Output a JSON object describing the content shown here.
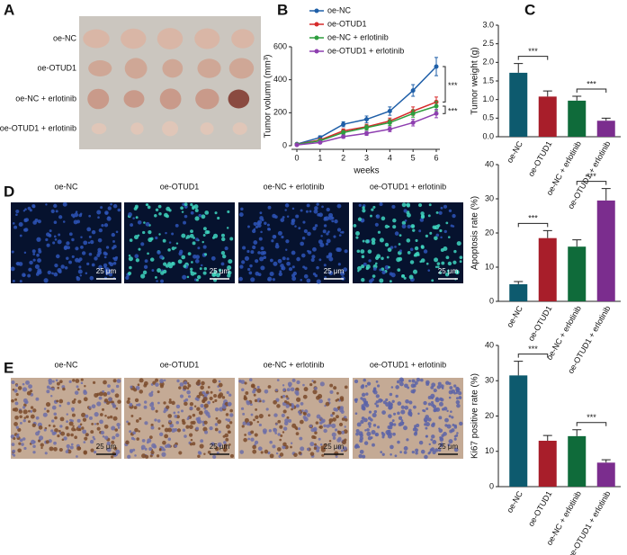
{
  "panel_a": {
    "letter": "A",
    "rows": [
      "oe-NC",
      "oe-OTUD1",
      "oe-NC + erlotinib",
      "oe-OTUD1 + erlotinib"
    ]
  },
  "panel_d": {
    "letter": "D",
    "columns": [
      "oe-NC",
      "oe-OTUD1",
      "oe-NC + erlotinib",
      "oe-OTUD1 + erlotinib"
    ],
    "scale_bar": "25 μm"
  },
  "panel_e": {
    "letter": "E",
    "columns": [
      "oe-NC",
      "oe-OTUD1",
      "oe-NC + erlotinib",
      "oe-OTUD1 + erlotinib"
    ],
    "scale_bar": "25 μm"
  },
  "chart_data": [
    {
      "panel": "B",
      "type": "line",
      "x": [
        0,
        1,
        2,
        3,
        4,
        5,
        6
      ],
      "xlim": [
        0,
        6
      ],
      "xticks": [
        0,
        1,
        2,
        3,
        4,
        5,
        6
      ],
      "ylim": [
        0,
        600
      ],
      "yticks": [
        0,
        200,
        400,
        600
      ],
      "x_label": "weeks",
      "y_label": "Tumor volumn (mm³)",
      "annotations": [
        "***",
        "***"
      ],
      "series": [
        {
          "name": "oe-NC",
          "color": "#1f5fa8",
          "values": [
            10,
            50,
            130,
            160,
            210,
            335,
            480
          ],
          "errors": [
            4,
            10,
            15,
            20,
            25,
            35,
            55
          ]
        },
        {
          "name": "oe-OTUD1",
          "color": "#d62b2b",
          "values": [
            8,
            35,
            90,
            115,
            150,
            210,
            265
          ],
          "errors": [
            3,
            8,
            12,
            15,
            18,
            25,
            30
          ]
        },
        {
          "name": "oe-NC + erlotinib",
          "color": "#2e9e3e",
          "values": [
            8,
            30,
            80,
            110,
            140,
            195,
            240
          ],
          "errors": [
            3,
            8,
            12,
            15,
            18,
            22,
            28
          ]
        },
        {
          "name": "oe-OTUD1 + erlotinib",
          "color": "#8e3fb0",
          "values": [
            5,
            20,
            55,
            75,
            100,
            140,
            195
          ],
          "errors": [
            2,
            6,
            10,
            12,
            15,
            20,
            25
          ]
        }
      ]
    },
    {
      "panel": "C",
      "type": "bar",
      "categories": [
        "oe-NC",
        "oe-OTUD1",
        "oe-NC + erlotinib",
        "oe-OTUD1 + erlotinib"
      ],
      "values": [
        1.72,
        1.08,
        0.97,
        0.43
      ],
      "errors": [
        0.25,
        0.15,
        0.12,
        0.07
      ],
      "colors": [
        "#0d5a6e",
        "#a81e2a",
        "#0f6b3a",
        "#7b2d8e"
      ],
      "ylim": [
        0,
        3
      ],
      "yticks": [
        {
          "value": 0,
          "label": "0.0"
        },
        0.5,
        {
          "value": 1,
          "label": "1.0"
        },
        1.5,
        {
          "value": 2,
          "label": "2.0"
        },
        2.5,
        {
          "value": 3,
          "label": "3.0"
        }
      ],
      "y_label": "Tumor weight (g)",
      "annotations": [
        "***",
        "***"
      ]
    },
    {
      "panel": "D",
      "type": "bar",
      "categories": [
        "oe-NC",
        "oe-OTUD1",
        "oe-NC + erlotinib",
        "oe-OTUD1 + erlotinib"
      ],
      "values": [
        5,
        18.5,
        16,
        29.5
      ],
      "errors": [
        0.8,
        2.2,
        2,
        3.5
      ],
      "colors": [
        "#0d5a6e",
        "#a81e2a",
        "#0f6b3a",
        "#7b2d8e"
      ],
      "ylim": [
        0,
        40
      ],
      "yticks": [
        0,
        10,
        20,
        30,
        40
      ],
      "y_label": "Apoptosis rate (%)",
      "annotations": [
        "***",
        "***"
      ]
    },
    {
      "panel": "E",
      "type": "bar",
      "categories": [
        "oe-NC",
        "oe-OTUD1",
        "oe-NC + erlotinib",
        "oe-OTUD1 + erlotinib"
      ],
      "values": [
        31.5,
        13,
        14.3,
        6.8
      ],
      "errors": [
        4,
        1.5,
        1.8,
        0.8
      ],
      "colors": [
        "#0d5a6e",
        "#a81e2a",
        "#0f6b3a",
        "#7b2d8e"
      ],
      "ylim": [
        0,
        40
      ],
      "yticks": [
        0,
        10,
        20,
        30,
        40
      ],
      "y_label": "Ki67 positive rate (%)",
      "annotations": [
        "***",
        "***"
      ]
    }
  ]
}
